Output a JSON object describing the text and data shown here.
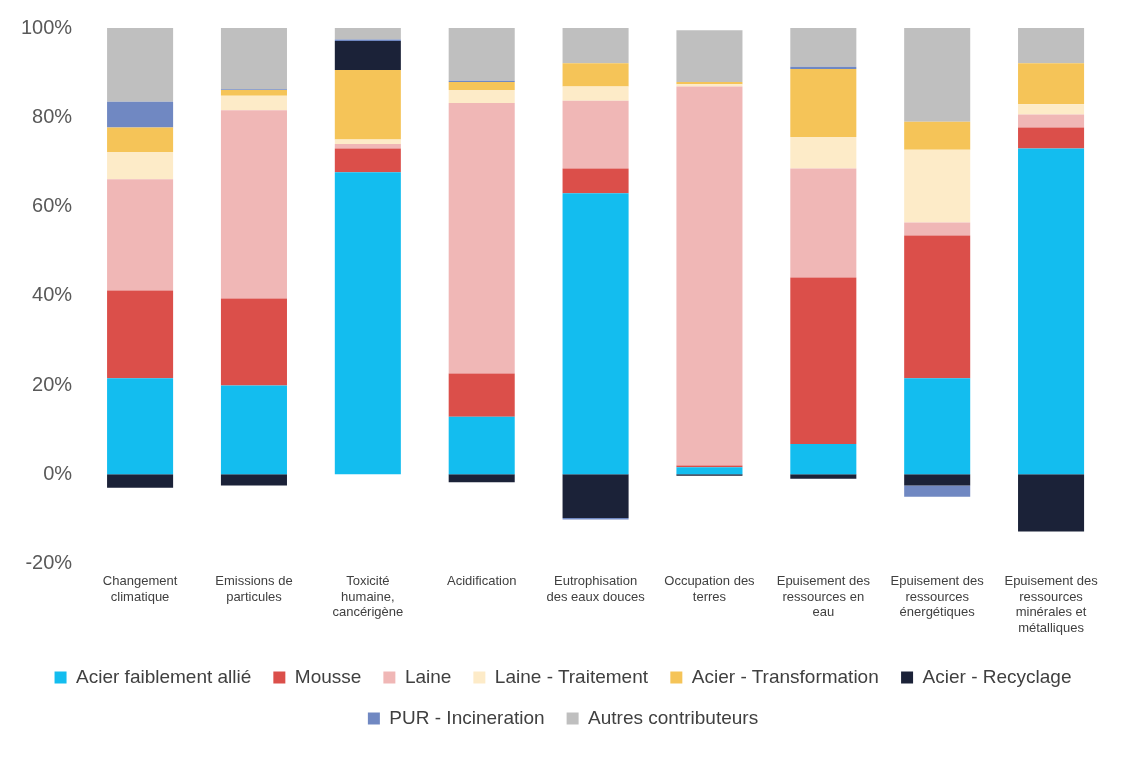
{
  "chart_data": {
    "type": "bar",
    "stacked": true,
    "categories": [
      "Changement climatique",
      "Emissions de particules",
      "Toxicité humaine, cancérigène",
      "Acidification",
      "Eutrophisation des eaux douces",
      "Occupation des terres",
      "Epuisement des ressources en eau",
      "Epuisement des ressources énergétiques",
      "Epuisement des ressources minérales et métalliques"
    ],
    "series": [
      {
        "name": "Acier faiblement allié",
        "color": "#13bdef",
        "values": [
          21.5,
          19.9,
          67.7,
          12.9,
          63,
          1.6,
          6.8,
          21.5,
          73
        ]
      },
      {
        "name": "Mousse",
        "color": "#db4f4a",
        "values": [
          19.7,
          19.5,
          5.3,
          9.7,
          5.5,
          0.4,
          37.3,
          32,
          4.7
        ]
      },
      {
        "name": "Laine",
        "color": "#f0b7b6",
        "values": [
          24.9,
          42.2,
          1,
          60.6,
          15.2,
          84.9,
          24.4,
          2.9,
          2.9
        ]
      },
      {
        "name": "Laine - Traitement",
        "color": "#fdebc8",
        "values": [
          6.1,
          3.2,
          1,
          2.9,
          3.2,
          0.5,
          7.1,
          16.3,
          2.3
        ]
      },
      {
        "name": "Acier - Transformation",
        "color": "#f5c458",
        "values": [
          5.5,
          1.3,
          15.6,
          1.8,
          5.2,
          0.5,
          15.2,
          6.3,
          9.2
        ]
      },
      {
        "name": "Acier - Recyclage",
        "color": "#1b2238",
        "values": [
          -3,
          -2.5,
          6.5,
          -1.8,
          -9.8,
          -0.3,
          -1,
          -2.5,
          -12.8
        ]
      },
      {
        "name": "PUR - Incineration",
        "color": "#7088c2",
        "values": [
          5.8,
          0.2,
          0.3,
          0.3,
          -0.3,
          null,
          0.5,
          -2.5,
          null
        ]
      },
      {
        "name": "Autres contributeurs",
        "color": "#bfbfbf",
        "values": [
          16.5,
          13.9,
          2.6,
          11.8,
          7.9,
          11.6,
          8.7,
          21,
          7.9
        ]
      }
    ],
    "ylim": [
      -20,
      100
    ],
    "yticks": [
      {
        "value": -20,
        "label": "-20%"
      },
      {
        "value": 0,
        "label": "0%"
      },
      {
        "value": 20,
        "label": "20%"
      },
      {
        "value": 40,
        "label": "40%"
      },
      {
        "value": 60,
        "label": "60%"
      },
      {
        "value": 80,
        "label": "80%"
      },
      {
        "value": 100,
        "label": "100%"
      }
    ],
    "grid": false,
    "legend": "bottom"
  }
}
